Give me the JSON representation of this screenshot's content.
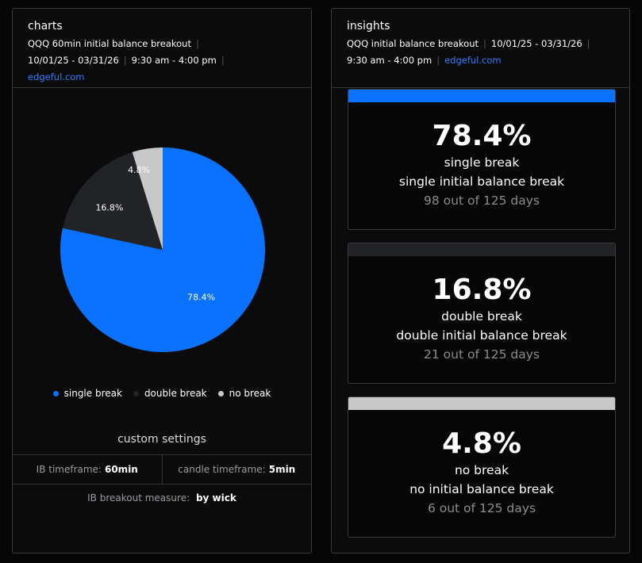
{
  "charts_panel": {
    "title": "charts",
    "subtitle": "QQQ 60min initial balance breakout",
    "date_range": "10/01/25 - 03/31/26",
    "time_range": "9:30 am - 4:00 pm",
    "link": "edgeful.com"
  },
  "chart_data": {
    "type": "pie",
    "categories": [
      "single break",
      "double break",
      "no break"
    ],
    "values": [
      78.4,
      16.8,
      4.8
    ],
    "labels": [
      "78.4%",
      "16.8%",
      "4.8%"
    ],
    "colors": [
      "#0a72ff",
      "#222327",
      "#c8c8c8"
    ],
    "title": "",
    "legend_position": "bottom"
  },
  "settings": {
    "title": "custom settings",
    "ib_timeframe_label": "IB timeframe:",
    "ib_timeframe_value": "60min",
    "candle_timeframe_label": "candle timeframe:",
    "candle_timeframe_value": "5min",
    "breakout_measure_label": "IB breakout measure:",
    "breakout_measure_value": "by wick"
  },
  "insights_panel": {
    "title": "insights",
    "subtitle": "QQQ initial balance breakout",
    "date_range": "10/01/25 - 03/31/26",
    "time_range": "9:30 am - 4:00 pm",
    "link": "edgeful.com",
    "cards": [
      {
        "pct": "78.4%",
        "label": "single break",
        "desc": "single initial balance break",
        "count": "98 out of 125 days",
        "color": "#0a72ff"
      },
      {
        "pct": "16.8%",
        "label": "double break",
        "desc": "double initial balance break",
        "count": "21 out of 125 days",
        "color": "#222327"
      },
      {
        "pct": "4.8%",
        "label": "no break",
        "desc": "no initial balance break",
        "count": "6 out of 125 days",
        "color": "#c8c8c8"
      }
    ]
  }
}
